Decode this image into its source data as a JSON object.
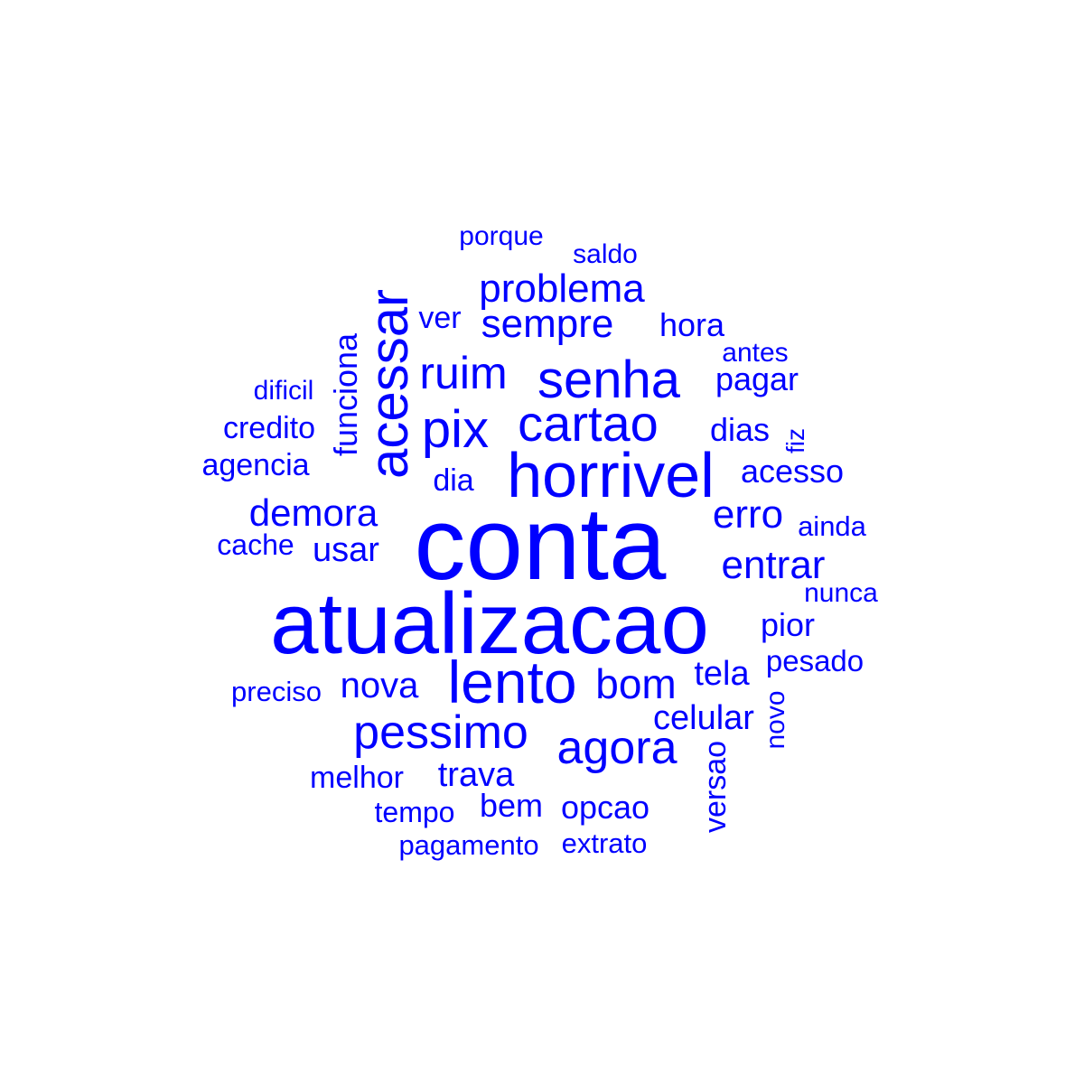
{
  "colors": {
    "word": "#0000ff",
    "background": "#ffffff"
  },
  "words": [
    {
      "text": "conta",
      "weight": 10
    },
    {
      "text": "atualizacao",
      "weight": 9
    },
    {
      "text": "horrivel",
      "weight": 7
    },
    {
      "text": "lento",
      "weight": 7
    },
    {
      "text": "acessar",
      "weight": 6
    },
    {
      "text": "senha",
      "weight": 6
    },
    {
      "text": "pix",
      "weight": 6
    },
    {
      "text": "cartao",
      "weight": 6
    },
    {
      "text": "pessimo",
      "weight": 6
    },
    {
      "text": "agora",
      "weight": 5
    },
    {
      "text": "ruim",
      "weight": 5
    },
    {
      "text": "problema",
      "weight": 4
    },
    {
      "text": "sempre",
      "weight": 4
    },
    {
      "text": "bom",
      "weight": 4
    },
    {
      "text": "entrar",
      "weight": 4
    },
    {
      "text": "erro",
      "weight": 4
    },
    {
      "text": "demora",
      "weight": 4
    },
    {
      "text": "nova",
      "weight": 4
    },
    {
      "text": "funciona",
      "weight": 3
    },
    {
      "text": "trava",
      "weight": 3
    },
    {
      "text": "celular",
      "weight": 3
    },
    {
      "text": "tela",
      "weight": 3
    },
    {
      "text": "usar",
      "weight": 3
    },
    {
      "text": "pagar",
      "weight": 3
    },
    {
      "text": "dias",
      "weight": 3
    },
    {
      "text": "pior",
      "weight": 3
    },
    {
      "text": "hora",
      "weight": 3
    },
    {
      "text": "acesso",
      "weight": 3
    },
    {
      "text": "credito",
      "weight": 3
    },
    {
      "text": "agencia",
      "weight": 3
    },
    {
      "text": "ver",
      "weight": 3
    },
    {
      "text": "bem",
      "weight": 3
    },
    {
      "text": "opcao",
      "weight": 3
    },
    {
      "text": "dia",
      "weight": 3
    },
    {
      "text": "melhor",
      "weight": 2
    },
    {
      "text": "tempo",
      "weight": 2
    },
    {
      "text": "pagamento",
      "weight": 2
    },
    {
      "text": "extrato",
      "weight": 2
    },
    {
      "text": "versao",
      "weight": 2
    },
    {
      "text": "novo",
      "weight": 2
    },
    {
      "text": "pesado",
      "weight": 2
    },
    {
      "text": "nunca",
      "weight": 2
    },
    {
      "text": "ainda",
      "weight": 2
    },
    {
      "text": "cache",
      "weight": 2
    },
    {
      "text": "preciso",
      "weight": 2
    },
    {
      "text": "dificil",
      "weight": 2
    },
    {
      "text": "fiz",
      "weight": 2
    },
    {
      "text": "antes",
      "weight": 2
    },
    {
      "text": "saldo",
      "weight": 2
    },
    {
      "text": "porque",
      "weight": 2
    }
  ]
}
